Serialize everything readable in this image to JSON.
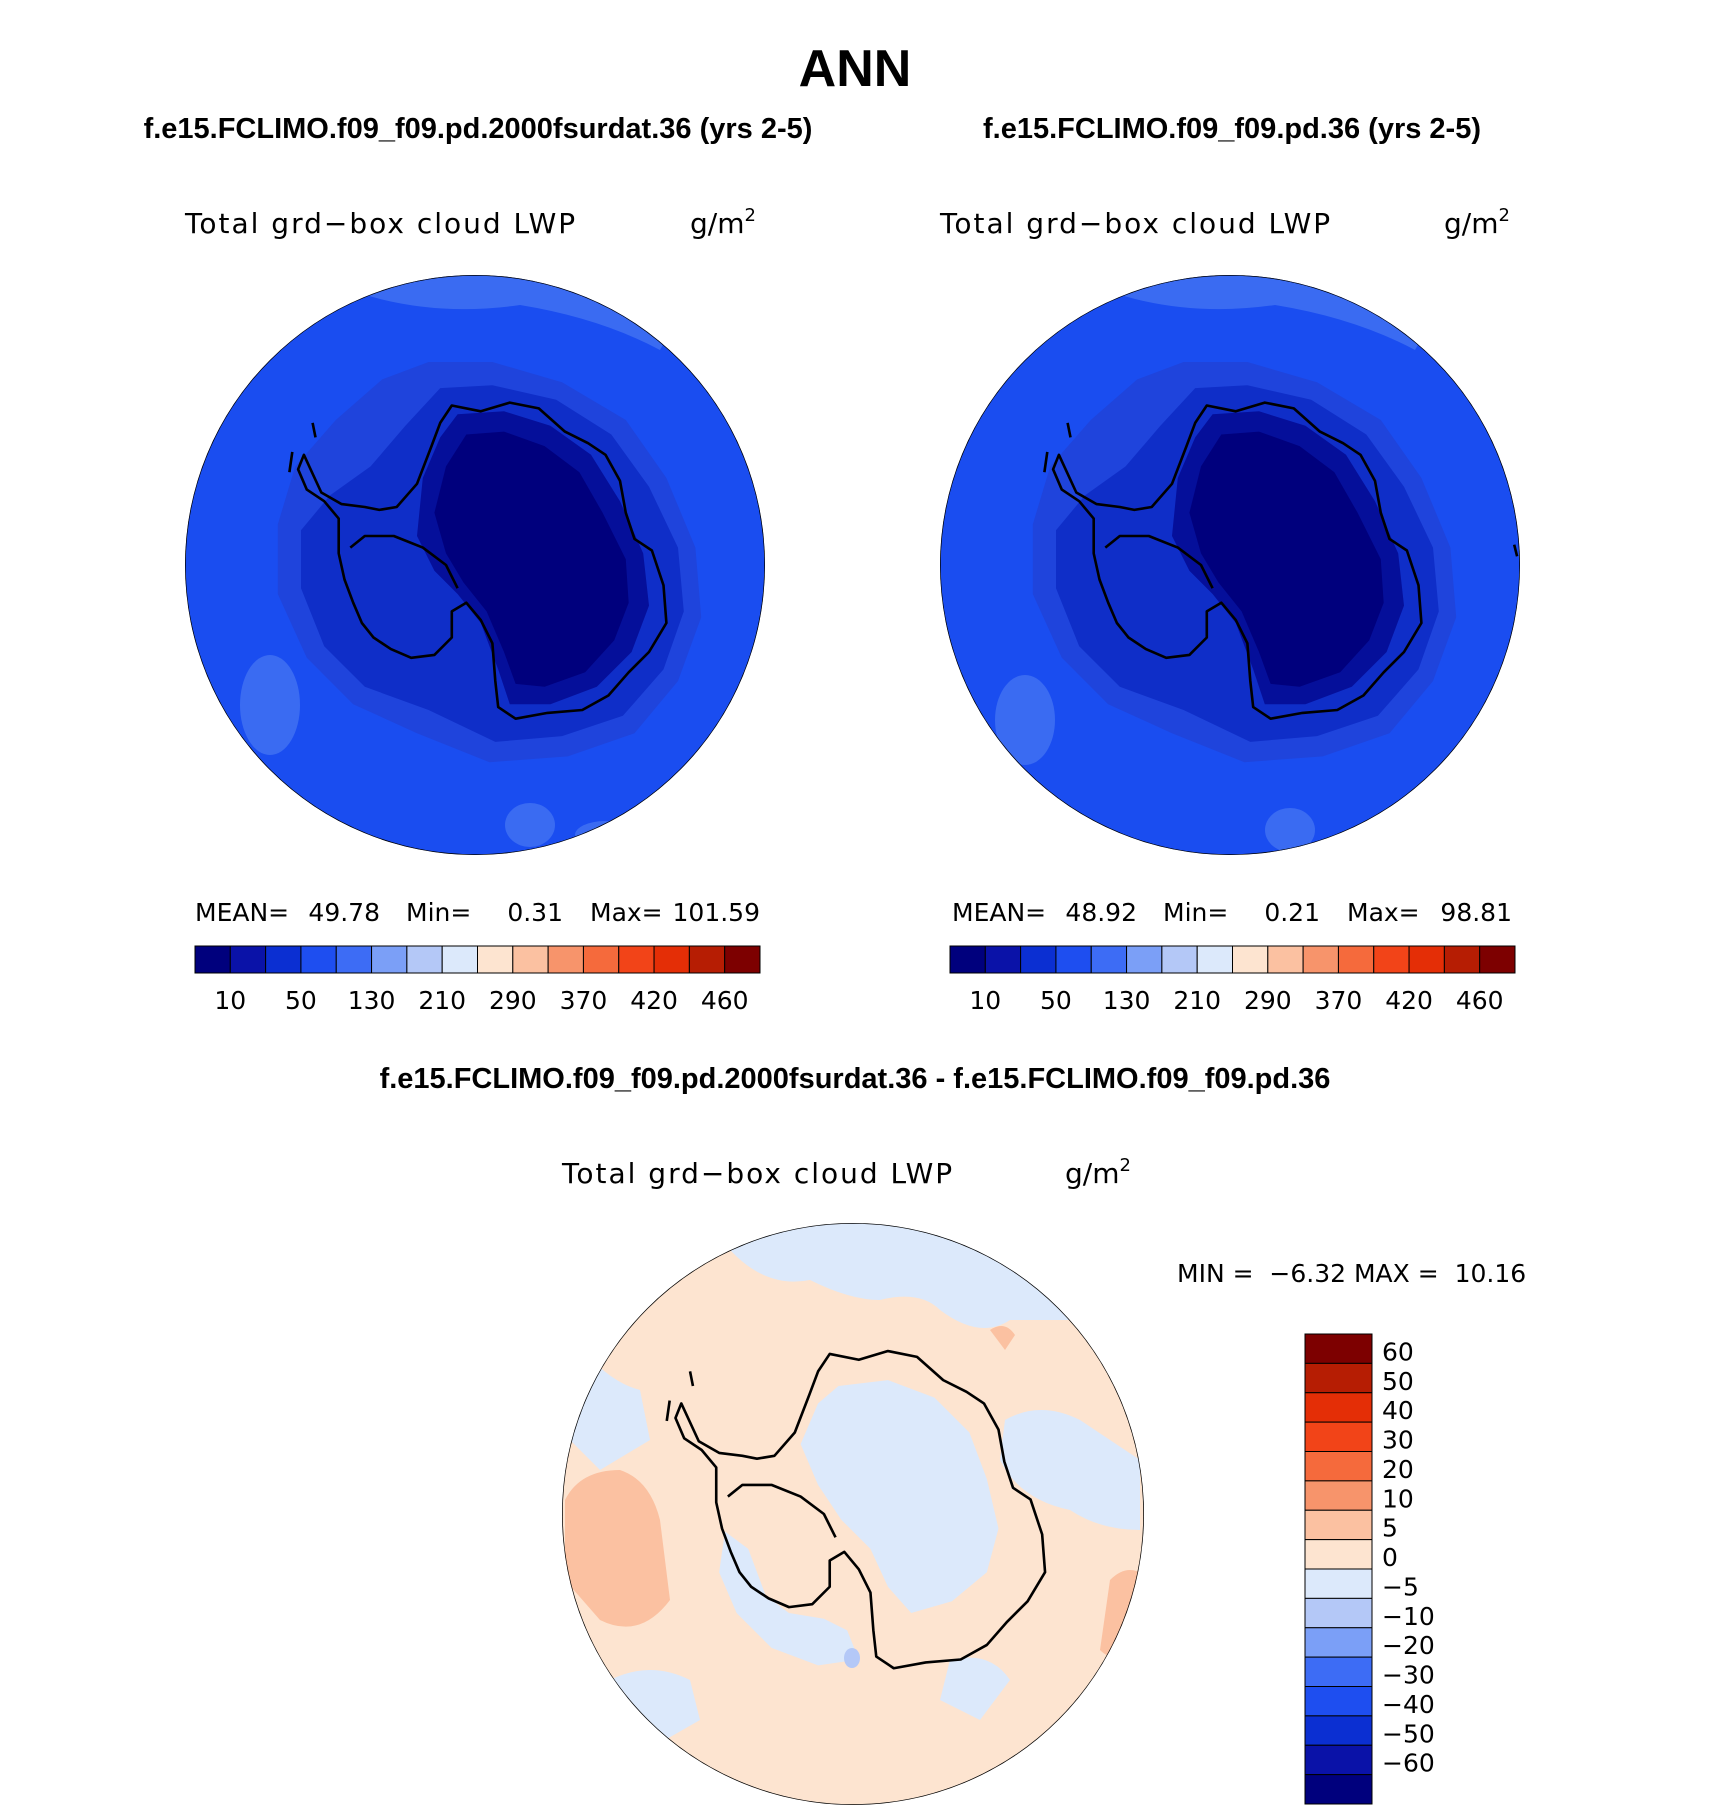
{
  "title": "ANN",
  "panels": [
    {
      "case_title": "f.e15.FCLIMO.f09_f09.pd.2000fsurdat.36 (yrs 2-5)",
      "variable": "Total grd−box cloud LWP",
      "units": "g/m",
      "units_sup": "2",
      "stats": {
        "mean_label": "MEAN=",
        "mean": "49.78",
        "min_label": "Min=",
        "min": "0.31",
        "max_label": "Max=",
        "max": "101.59"
      }
    },
    {
      "case_title": "f.e15.FCLIMO.f09_f09.pd.36 (yrs 2-5)",
      "variable": "Total grd−box cloud LWP",
      "units": "g/m",
      "units_sup": "2",
      "stats": {
        "mean_label": "MEAN=",
        "mean": "48.92",
        "min_label": "Min=",
        "min": "0.21",
        "max_label": "Max=",
        "max": "98.81"
      }
    }
  ],
  "abs_colorbar": {
    "colors": [
      "#00007d",
      "#0a12a8",
      "#0b2fd2",
      "#1e4ef0",
      "#3d6cf5",
      "#7b9ff7",
      "#b4c8f7",
      "#dce9fb",
      "#fde4d0",
      "#fbc1a1",
      "#f7946b",
      "#f56a3c",
      "#f24418",
      "#e42e06",
      "#b61d03",
      "#7d0000"
    ],
    "tick_labels": [
      "10",
      "50",
      "130",
      "210",
      "290",
      "370",
      "420",
      "460"
    ]
  },
  "diff": {
    "title": "f.e15.FCLIMO.f09_f09.pd.2000fsurdat.36 - f.e15.FCLIMO.f09_f09.pd.36",
    "variable": "Total grd−box cloud LWP",
    "units": "g/m",
    "units_sup": "2",
    "stats_text": "MIN =  −6.32 MAX =  10.16",
    "colorbar": {
      "colors_top_to_bottom": [
        "#7d0000",
        "#b61d03",
        "#e42e06",
        "#f24418",
        "#f56a3c",
        "#f7946b",
        "#fbc1a1",
        "#fde4d0",
        "#dce9fb",
        "#b4c8f7",
        "#7b9ff7",
        "#3d6cf5",
        "#1e4ef0",
        "#0b2fd2",
        "#0a12a8",
        "#00007d"
      ],
      "tick_labels": [
        "60",
        "50",
        "40",
        "30",
        "20",
        "10",
        "5",
        "0",
        "−5",
        "−10",
        "−20",
        "−30",
        "−40",
        "−50",
        "−60"
      ]
    }
  }
}
